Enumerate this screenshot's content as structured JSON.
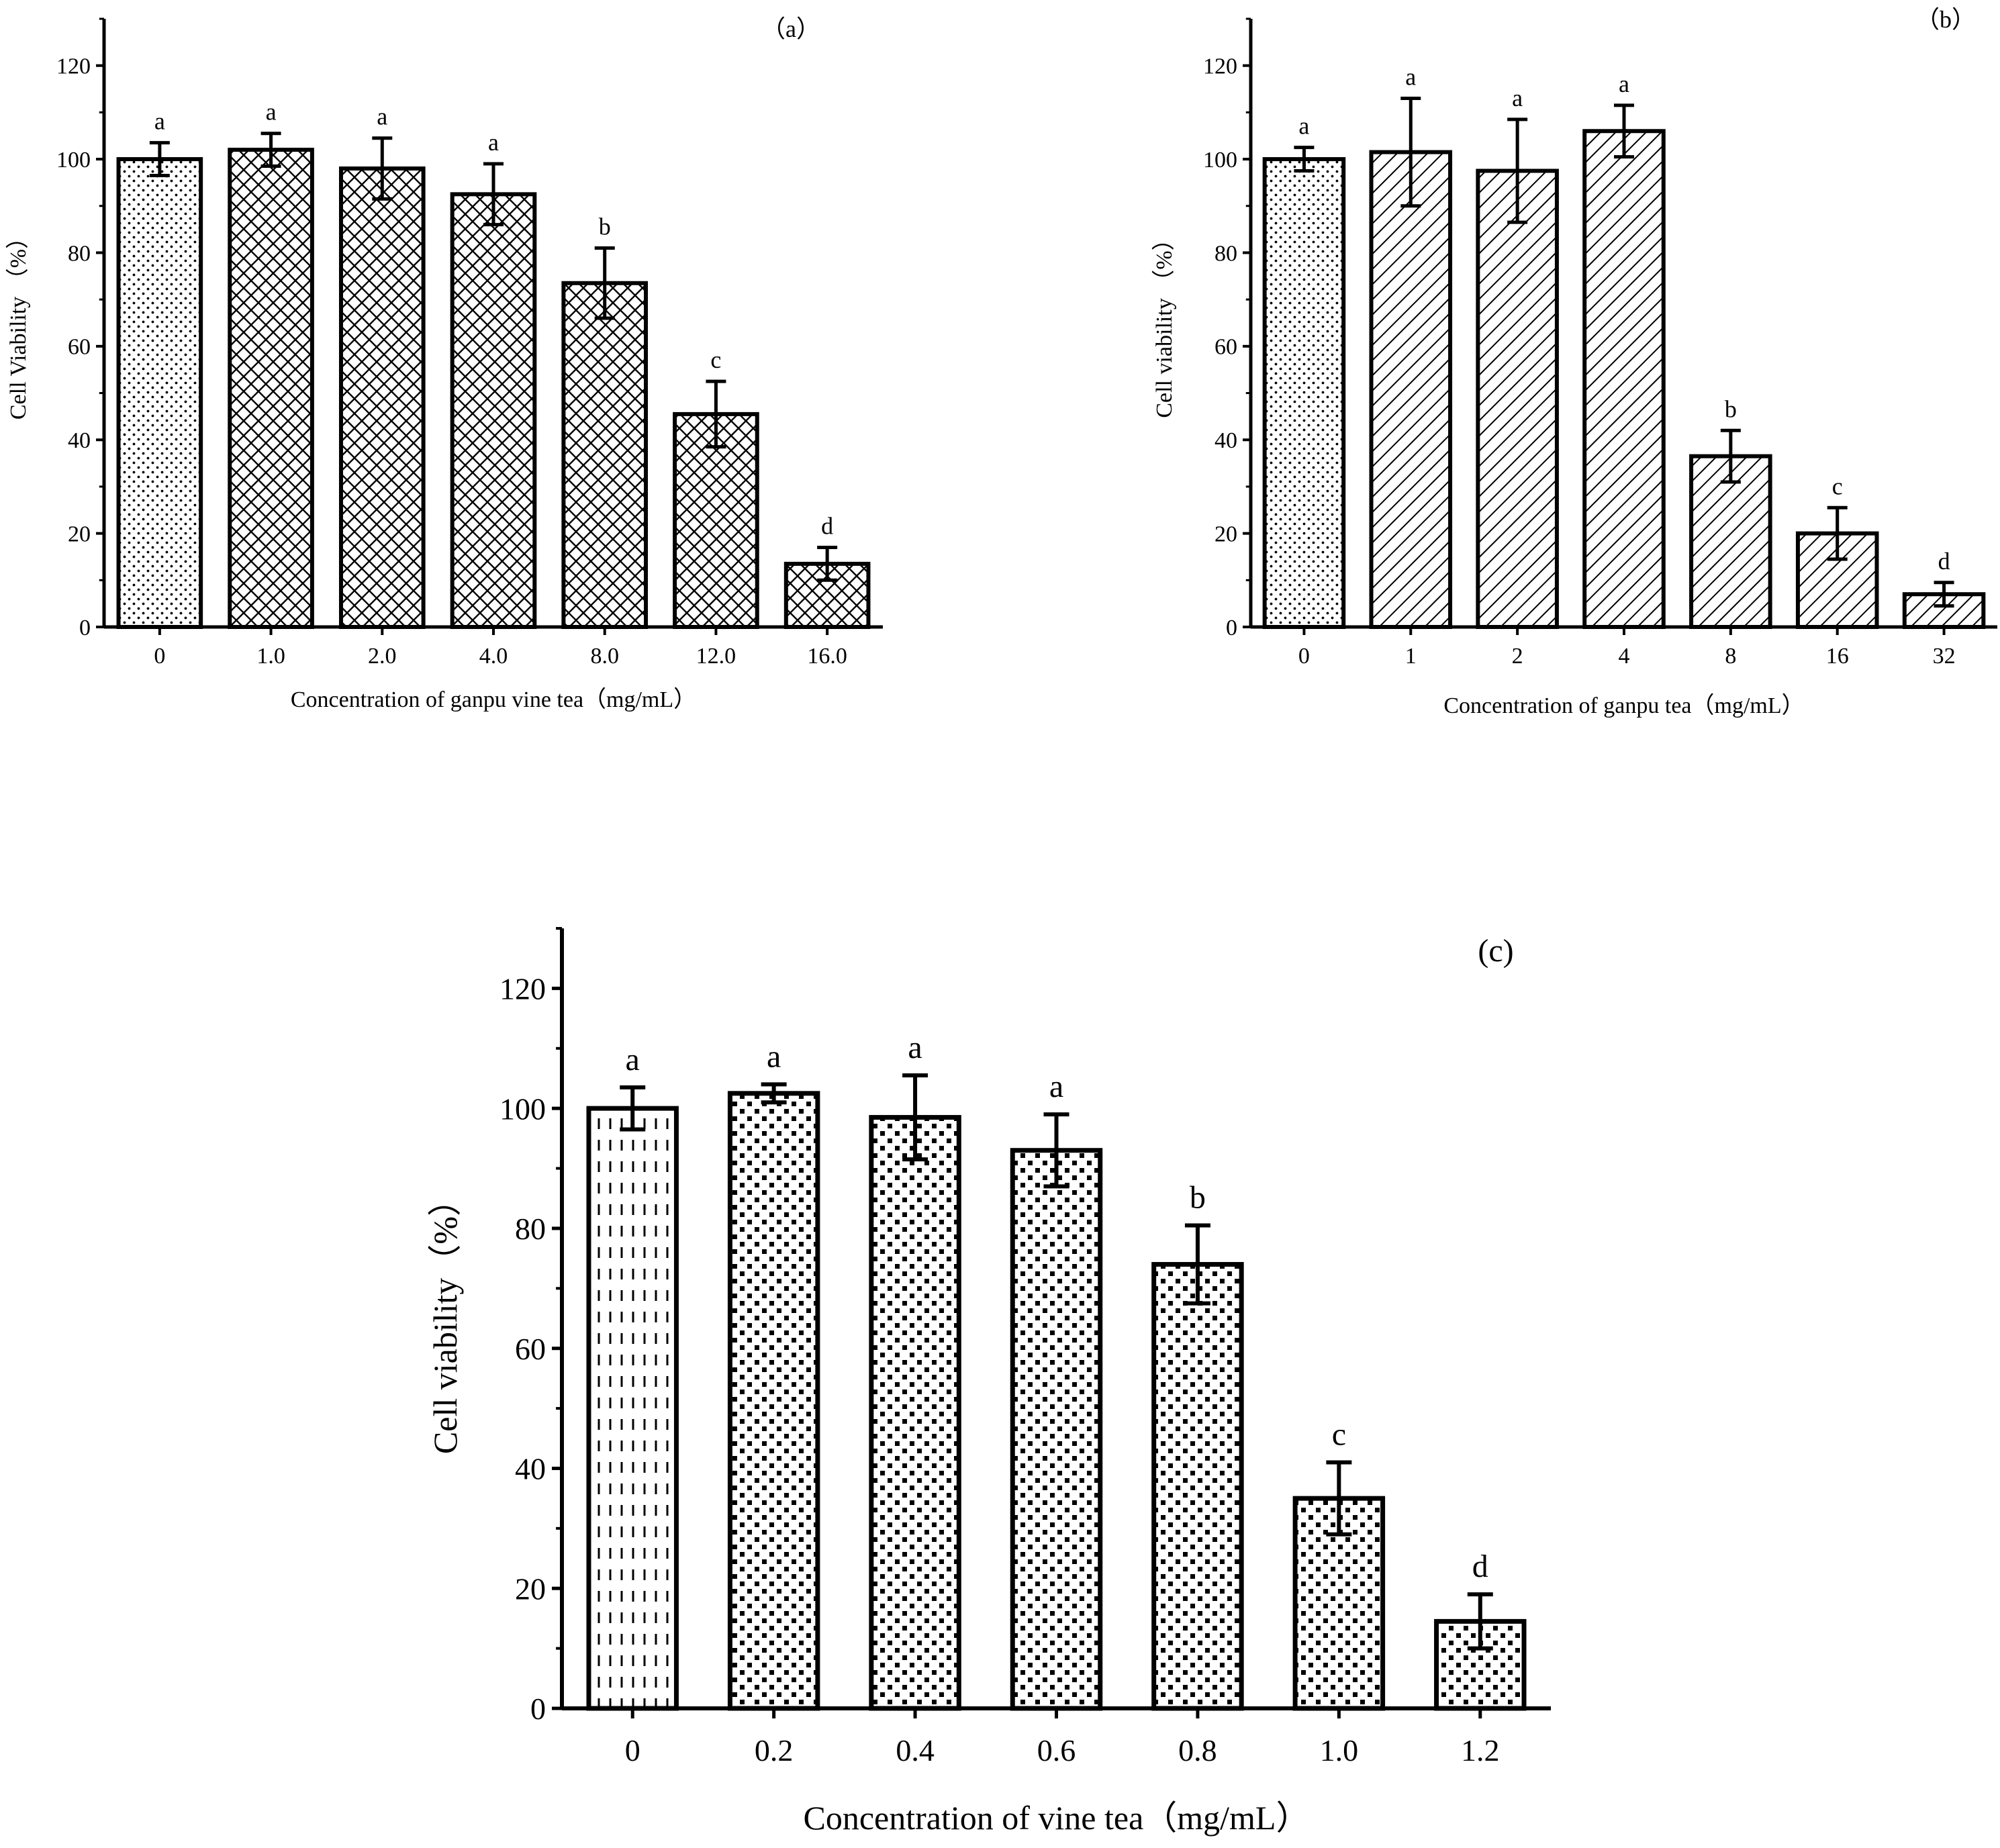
{
  "chart_data": [
    {
      "type": "bar",
      "panel_label": "（a）",
      "title": "",
      "xlabel": "Concentration of ganpu vine tea（mg/mL）",
      "ylabel": "Cell Viability （%）",
      "ylim": [
        0,
        130
      ],
      "yticks": [
        0,
        20,
        40,
        60,
        80,
        100,
        120
      ],
      "categories": [
        "0",
        "1.0",
        "2.0",
        "4.0",
        "8.0",
        "12.0",
        "16.0"
      ],
      "values": [
        100,
        102,
        98,
        92.5,
        73.5,
        45.5,
        13.5
      ],
      "errors": [
        3.5,
        3.5,
        6.5,
        6.5,
        7.5,
        7,
        3.5
      ],
      "significance": [
        "a",
        "a",
        "a",
        "a",
        "b",
        "c",
        "d"
      ],
      "patterns": [
        "dots",
        "cross",
        "cross",
        "cross",
        "cross",
        "cross",
        "cross"
      ],
      "grid": false
    },
    {
      "type": "bar",
      "panel_label": "（b）",
      "title": "",
      "xlabel": "Concentration of ganpu tea（mg/mL）",
      "ylabel": "Cell viability （%）",
      "ylim": [
        0,
        130
      ],
      "yticks": [
        0,
        20,
        40,
        60,
        80,
        100,
        120
      ],
      "categories": [
        "0",
        "1",
        "2",
        "4",
        "8",
        "16",
        "32"
      ],
      "values": [
        100,
        101.5,
        97.5,
        106,
        36.5,
        20,
        7
      ],
      "errors": [
        2.5,
        11.5,
        11,
        5.5,
        5.5,
        5.5,
        2.5
      ],
      "significance": [
        "a",
        "a",
        "a",
        "a",
        "b",
        "c",
        "d"
      ],
      "patterns": [
        "dots",
        "diag",
        "diag",
        "diag",
        "diag",
        "diag",
        "diag"
      ],
      "grid": false
    },
    {
      "type": "bar",
      "panel_label": "(c)",
      "title": "",
      "xlabel": "Concentration of vine tea（mg/mL）",
      "ylabel": "Cell viability（%）",
      "ylim": [
        0,
        130
      ],
      "yticks": [
        0,
        20,
        40,
        60,
        80,
        100,
        120
      ],
      "categories": [
        "0",
        "0.2",
        "0.4",
        "0.6",
        "0.8",
        "1.0",
        "1.2"
      ],
      "values": [
        100,
        102.5,
        98.5,
        93,
        74,
        35,
        14.5
      ],
      "errors": [
        3.5,
        1.5,
        7,
        6,
        6.5,
        6,
        4.5
      ],
      "significance": [
        "a",
        "a",
        "a",
        "a",
        "b",
        "c",
        "d"
      ],
      "patterns": [
        "dashes",
        "squares",
        "squares",
        "squares",
        "squares",
        "squares",
        "squares"
      ],
      "grid": false
    }
  ]
}
